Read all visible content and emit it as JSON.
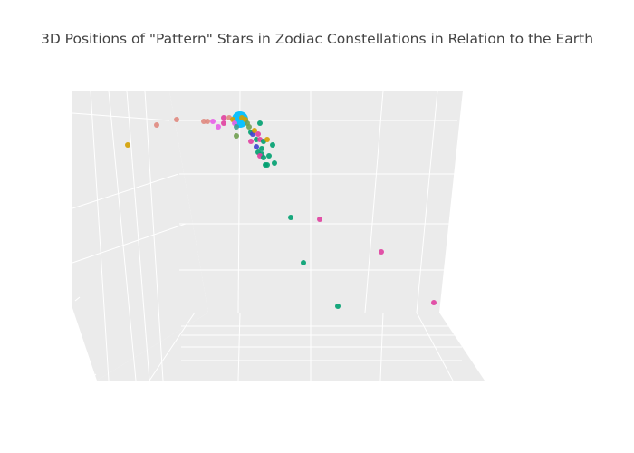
{
  "chart_data": {
    "type": "scatter3d",
    "title": "3D Positions of \"Pattern\" Stars in Zodiac Constellations in Relation to the Earth",
    "grid": true,
    "legend": "none",
    "colors": {
      "earth": "#00bfff",
      "orange": "#d4a000",
      "salmon": "#e08a80",
      "pink": "#e860e8",
      "magenta": "#e040a0",
      "green": "#00a070",
      "teal": "#40a090",
      "blue": "#4040d0",
      "olive": "#70a050"
    },
    "points": [
      {
        "x": 0,
        "y": 0,
        "z": 0,
        "c": "earth",
        "s": 9
      },
      {
        "x": -62,
        "y": 14,
        "z": 0,
        "c": "orange",
        "s": 3
      },
      {
        "x": -46,
        "y": 3,
        "z": 0,
        "c": "salmon",
        "s": 3
      },
      {
        "x": -35,
        "y": 0,
        "z": 0,
        "c": "salmon",
        "s": 3
      },
      {
        "x": -20,
        "y": 1,
        "z": 0,
        "c": "salmon",
        "s": 3
      },
      {
        "x": -18,
        "y": 1,
        "z": 0,
        "c": "salmon",
        "s": 3
      },
      {
        "x": -15,
        "y": 1,
        "z": 0,
        "c": "pink",
        "s": 3
      },
      {
        "x": -12,
        "y": 4,
        "z": 0,
        "c": "pink",
        "s": 3
      },
      {
        "x": -9,
        "y": -1,
        "z": 0,
        "c": "magenta",
        "s": 3
      },
      {
        "x": -9,
        "y": 2,
        "z": 0,
        "c": "magenta",
        "s": 3
      },
      {
        "x": -6,
        "y": -1,
        "z": 0,
        "c": "salmon",
        "s": 3
      },
      {
        "x": -4,
        "y": 0,
        "z": 0,
        "c": "orange",
        "s": 3
      },
      {
        "x": -3,
        "y": 2,
        "z": 0,
        "c": "pink",
        "s": 3
      },
      {
        "x": -2,
        "y": 4,
        "z": 0,
        "c": "teal",
        "s": 3
      },
      {
        "x": 1,
        "y": -1,
        "z": 0,
        "c": "orange",
        "s": 3
      },
      {
        "x": 3,
        "y": 0,
        "z": 0,
        "c": "orange",
        "s": 3
      },
      {
        "x": 4,
        "y": 2,
        "z": 0,
        "c": "olive",
        "s": 3
      },
      {
        "x": 5,
        "y": 4,
        "z": 0,
        "c": "olive",
        "s": 3
      },
      {
        "x": 6,
        "y": 7,
        "z": 0,
        "c": "green",
        "s": 3
      },
      {
        "x": -2,
        "y": 9,
        "z": 0,
        "c": "olive",
        "s": 3
      },
      {
        "x": 7,
        "y": 8,
        "z": 0,
        "c": "blue",
        "s": 3
      },
      {
        "x": 8,
        "y": 6,
        "z": 0,
        "c": "orange",
        "s": 3
      },
      {
        "x": 10,
        "y": 8,
        "z": 0,
        "c": "magenta",
        "s": 3
      },
      {
        "x": 9,
        "y": 11,
        "z": 0,
        "c": "green",
        "s": 3
      },
      {
        "x": 11,
        "y": 11,
        "z": 0,
        "c": "magenta",
        "s": 3
      },
      {
        "x": 11,
        "y": 2,
        "z": 0,
        "c": "green",
        "s": 3
      },
      {
        "x": 13,
        "y": 12,
        "z": 0,
        "c": "green",
        "s": 3
      },
      {
        "x": 15,
        "y": 11,
        "z": 0,
        "c": "orange",
        "s": 3
      },
      {
        "x": 12,
        "y": 16,
        "z": 0,
        "c": "green",
        "s": 3
      },
      {
        "x": 6,
        "y": 12,
        "z": 0,
        "c": "magenta",
        "s": 3
      },
      {
        "x": 9,
        "y": 15,
        "z": 0,
        "c": "blue",
        "s": 3
      },
      {
        "x": 10,
        "y": 18,
        "z": 0,
        "c": "green",
        "s": 3
      },
      {
        "x": 12,
        "y": 19,
        "z": 0,
        "c": "green",
        "s": 3
      },
      {
        "x": 11,
        "y": 20,
        "z": 0,
        "c": "magenta",
        "s": 3
      },
      {
        "x": 18,
        "y": 14,
        "z": 0,
        "c": "green",
        "s": 3
      },
      {
        "x": 16,
        "y": 20,
        "z": 0,
        "c": "green",
        "s": 3
      },
      {
        "x": 13,
        "y": 21,
        "z": 0,
        "c": "green",
        "s": 3
      },
      {
        "x": 15,
        "y": 25,
        "z": 0,
        "c": "green",
        "s": 3
      },
      {
        "x": 19,
        "y": 24,
        "z": 0,
        "c": "green",
        "s": 3
      },
      {
        "x": 14,
        "y": 25,
        "z": 0,
        "c": "green",
        "s": 3
      },
      {
        "x": 28,
        "y": 54,
        "z": 0,
        "c": "green",
        "s": 3
      },
      {
        "x": 44,
        "y": 55,
        "z": 0,
        "c": "magenta",
        "s": 3
      },
      {
        "x": 35,
        "y": 79,
        "z": 0,
        "c": "green",
        "s": 3
      },
      {
        "x": 78,
        "y": 73,
        "z": 0,
        "c": "magenta",
        "s": 3
      },
      {
        "x": 54,
        "y": 103,
        "z": 0,
        "c": "green",
        "s": 3
      },
      {
        "x": 107,
        "y": 101,
        "z": 0,
        "c": "magenta",
        "s": 3
      }
    ]
  }
}
